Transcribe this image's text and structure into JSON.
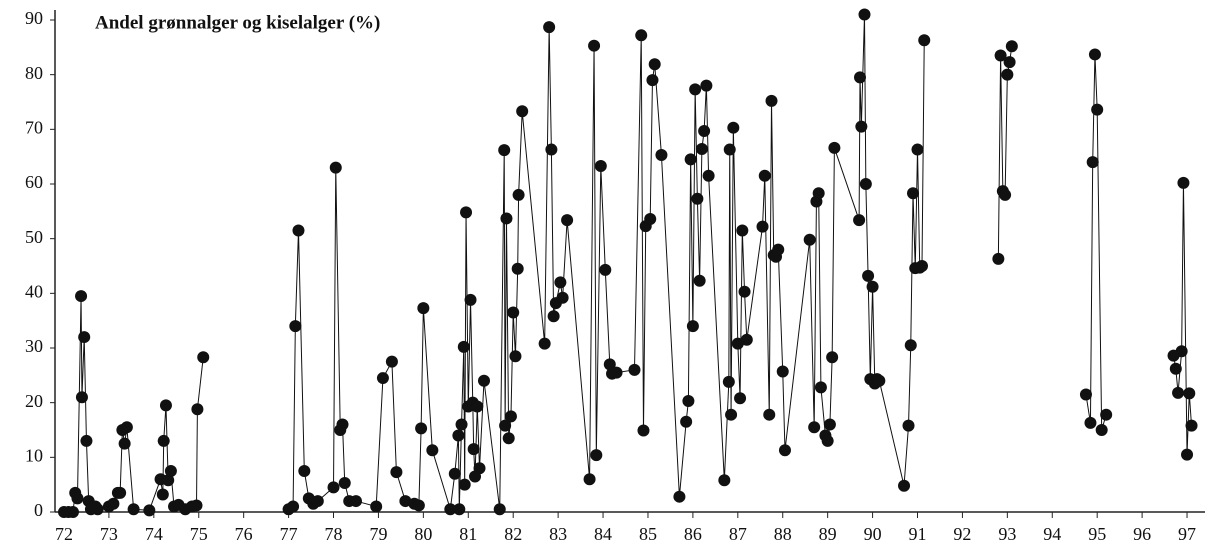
{
  "chart_data": {
    "type": "line",
    "title": "Andel grønnalger og kiselalger (%)",
    "x": [
      72.0,
      72.1,
      72.2,
      72.25,
      72.3,
      72.38,
      72.4,
      72.45,
      72.5,
      72.55,
      72.6,
      72.7,
      72.75,
      73.0,
      73.1,
      73.2,
      73.25,
      73.3,
      73.35,
      73.4,
      73.55,
      73.9,
      74.15,
      74.2,
      74.22,
      74.27,
      74.32,
      74.38,
      74.45,
      74.55,
      74.7,
      74.85,
      74.95,
      74.97,
      75.1,
      null,
      77.0,
      77.1,
      77.15,
      77.22,
      77.35,
      77.45,
      77.55,
      77.65,
      78.0,
      78.05,
      78.15,
      78.2,
      78.25,
      78.35,
      78.5,
      78.95,
      79.1,
      79.3,
      79.4,
      79.6,
      79.8,
      79.9,
      79.95,
      80.0,
      80.2,
      80.6,
      80.7,
      80.78,
      80.8,
      80.85,
      80.9,
      80.92,
      80.95,
      81.0,
      81.05,
      81.1,
      81.12,
      81.15,
      81.2,
      81.25,
      81.35,
      81.7,
      81.8,
      81.82,
      81.85,
      81.9,
      81.95,
      82.0,
      82.05,
      82.1,
      82.12,
      82.2,
      82.7,
      82.8,
      82.85,
      82.9,
      82.95,
      83.05,
      83.1,
      83.2,
      83.7,
      83.8,
      83.85,
      83.95,
      84.05,
      84.15,
      84.2,
      84.3,
      84.7,
      84.85,
      84.9,
      84.95,
      85.05,
      85.1,
      85.15,
      85.3,
      85.7,
      85.85,
      85.9,
      85.95,
      86.0,
      86.05,
      86.1,
      86.15,
      86.2,
      86.25,
      86.3,
      86.35,
      86.7,
      86.8,
      86.82,
      86.85,
      86.9,
      87.0,
      87.05,
      87.1,
      87.15,
      87.2,
      87.55,
      87.6,
      87.7,
      87.75,
      87.8,
      87.85,
      87.9,
      88.0,
      88.05,
      88.6,
      88.7,
      88.75,
      88.8,
      88.85,
      88.95,
      89.0,
      89.05,
      89.1,
      89.15,
      89.7,
      89.72,
      89.75,
      89.82,
      89.85,
      89.9,
      89.95,
      90.0,
      90.05,
      90.1,
      90.15,
      90.7,
      90.8,
      90.85,
      90.9,
      90.95,
      91.0,
      91.05,
      91.1,
      91.15,
      null,
      92.8,
      92.85,
      92.9,
      92.95,
      93.0,
      93.05,
      93.1,
      null,
      94.75,
      94.85,
      94.9,
      94.95,
      95.0,
      95.1,
      95.2,
      null,
      96.7,
      96.75,
      96.8,
      96.88,
      96.92,
      97.0,
      97.05,
      97.1
    ],
    "values": [
      0,
      0,
      0,
      3.5,
      2.5,
      39.5,
      21,
      32,
      13,
      2,
      0.5,
      1,
      0.5,
      1,
      1.5,
      3.5,
      3.5,
      15,
      12.5,
      15.5,
      0.5,
      0.3,
      6,
      3.2,
      13,
      19.5,
      5.8,
      7.5,
      1,
      1.3,
      0.5,
      1,
      1.2,
      18.8,
      28.3,
      null,
      0.5,
      1,
      34,
      51.5,
      7.5,
      2.5,
      1.5,
      2,
      4.5,
      63,
      15,
      16,
      5.3,
      2,
      2,
      1,
      24.5,
      27.5,
      7.3,
      2,
      1.5,
      1.2,
      15.3,
      37.3,
      11.3,
      0.5,
      7,
      14,
      0.5,
      16,
      30.2,
      5,
      54.8,
      19.3,
      38.8,
      20,
      11.5,
      6.5,
      19.3,
      8,
      24,
      0.5,
      66.2,
      15.8,
      53.7,
      13.5,
      17.5,
      36.5,
      28.5,
      44.5,
      58,
      73.3,
      30.8,
      88.7,
      66.3,
      35.8,
      38.2,
      42,
      39.2,
      53.4,
      6,
      85.3,
      10.4,
      63.3,
      44.3,
      27,
      25.3,
      25.5,
      26,
      87.2,
      14.9,
      52.3,
      53.6,
      79,
      81.9,
      65.3,
      2.8,
      16.5,
      20.3,
      64.5,
      34,
      77.3,
      57.3,
      42.3,
      66.4,
      69.7,
      78,
      61.5,
      5.8,
      23.8,
      66.3,
      17.8,
      70.3,
      30.8,
      20.8,
      51.5,
      40.3,
      31.5,
      52.2,
      61.5,
      17.8,
      75.2,
      47,
      46.7,
      48,
      25.7,
      11.3,
      49.8,
      15.5,
      56.8,
      58.3,
      22.8,
      14,
      13,
      16,
      28.3,
      66.6,
      53.4,
      79.5,
      70.5,
      91,
      60,
      43.2,
      24.3,
      41.2,
      23.5,
      24.3,
      24,
      4.8,
      15.8,
      30.5,
      58.3,
      44.6,
      66.3,
      44.7,
      45,
      86.3,
      null,
      46.3,
      83.5,
      58.7,
      58,
      80,
      82.3,
      85.2,
      null,
      21.5,
      16.3,
      64,
      83.7,
      73.6,
      15,
      17.8,
      null,
      28.6,
      26.2,
      21.8,
      29.4,
      60.2,
      10.5,
      21.7,
      15.8
    ],
    "color": "#111111",
    "xlim": [
      71.8,
      97.4
    ],
    "xticks": [
      72,
      73,
      74,
      75,
      76,
      77,
      78,
      79,
      80,
      81,
      82,
      83,
      84,
      85,
      86,
      87,
      88,
      89,
      90,
      91,
      92,
      93,
      94,
      95,
      96,
      97
    ],
    "ylim": [
      0,
      90
    ],
    "yticks": [
      0,
      10,
      20,
      30,
      40,
      50,
      60,
      70,
      80,
      90
    ],
    "grid": false
  }
}
